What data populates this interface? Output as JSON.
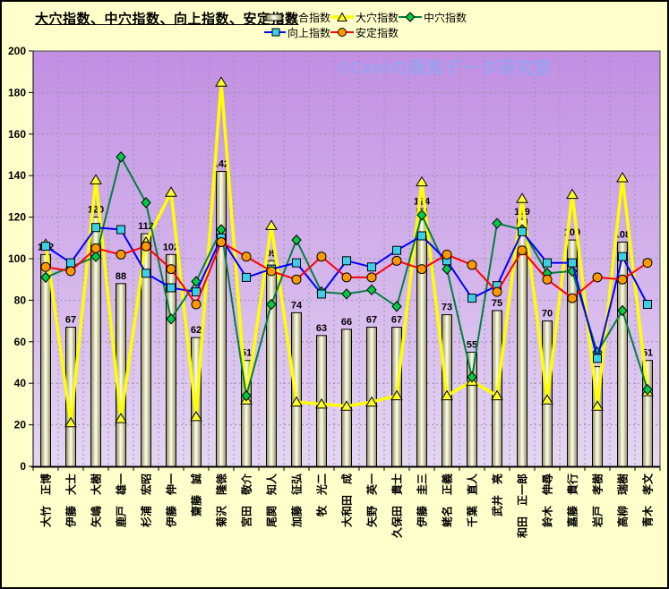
{
  "title": "大穴指数、中穴指数、向上指数、安定指数",
  "watermark": "©Caniの競馬データ研究室",
  "y_axis": {
    "min_label": "0",
    "max_label": "200"
  },
  "chart_data": {
    "type": "bar",
    "title": "大穴指数、中穴指数、向上指数、安定指数",
    "xlabel": "",
    "ylabel": "",
    "ylim": [
      0,
      200
    ],
    "ytick_step": 20,
    "yticks": [
      0,
      20,
      40,
      60,
      80,
      100,
      120,
      140,
      160,
      180,
      200
    ],
    "grid": true,
    "legend_position": "top-right",
    "plot_bg_top": "#C28FE3",
    "plot_bg_bottom": "#E4D6F3",
    "outer_bg": "#FFFFCC",
    "categories": [
      "大竹　正博",
      "伊藤　大士",
      "矢嶋　大樹",
      "鹿戸　雄一",
      "杉浦　宏昭",
      "伊藤　伸一",
      "齋藤　誠",
      "菊沢　隆徳",
      "宮田　敬介",
      "尾関　知人",
      "加藤　征弘",
      "牧　光二",
      "大和田　成",
      "矢野　英一",
      "久保田　貴士",
      "伊藤　圭三",
      "蛯名　正義",
      "千葉　直人",
      "武井　亮",
      "和田　正一郎",
      "鈴木　伸尋",
      "嘉藤　貴行",
      "岩戸　孝樹",
      "高柳　瑞樹",
      "青木　孝文"
    ],
    "series": [
      {
        "name": "総合指数",
        "key": "overall-index",
        "type": "bar",
        "marker": "none",
        "color_edge": "#8F8F5A",
        "color_center": "#FFFFF0",
        "labeled": true,
        "values": [
          102,
          67,
          120,
          88,
          112,
          102,
          62,
          142,
          51,
          99,
          74,
          63,
          66,
          67,
          67,
          124,
          73,
          55,
          75,
          119,
          70,
          109,
          48,
          108,
          51
        ]
      },
      {
        "name": "大穴指数",
        "key": "longshot-index",
        "type": "line",
        "marker": "triangle",
        "color": "#FFFF00",
        "marker_fill": "#FFFF2A",
        "line_width": 3.5,
        "values": [
          107,
          21,
          138,
          23,
          108,
          132,
          24,
          185,
          32,
          116,
          31,
          30,
          29,
          31,
          34,
          137,
          34,
          41,
          34,
          129,
          32,
          131,
          29,
          139,
          36
        ]
      },
      {
        "name": "中穴指数",
        "key": "mid-longshot-index",
        "type": "line",
        "marker": "diamond",
        "color": "#008040",
        "marker_fill": "#00CC44",
        "line_width": 2,
        "values": [
          91,
          96,
          101,
          149,
          127,
          71,
          89,
          114,
          34,
          78,
          109,
          84,
          83,
          85,
          77,
          121,
          95,
          43,
          117,
          114,
          93,
          94,
          55,
          75,
          37
        ]
      },
      {
        "name": "向上指数",
        "key": "improvement-index",
        "type": "line",
        "marker": "square",
        "color": "#0000FF",
        "marker_fill": "#3BD0E8",
        "line_width": 2,
        "values": [
          106,
          98,
          115,
          114,
          93,
          86,
          84,
          110,
          91,
          95,
          98,
          83,
          99,
          96,
          104,
          111,
          99,
          81,
          87,
          113,
          98,
          98,
          52,
          101,
          78
        ]
      },
      {
        "name": "安定指数",
        "key": "stability-index",
        "type": "line",
        "marker": "circle",
        "color": "#FF0000",
        "marker_fill": "#FF9900",
        "line_width": 2,
        "values": [
          96,
          94,
          105,
          102,
          106,
          95,
          78,
          108,
          101,
          94,
          90,
          101,
          91,
          91,
          99,
          95,
          102,
          97,
          84,
          104,
          90,
          81,
          91,
          90,
          98
        ]
      }
    ]
  }
}
